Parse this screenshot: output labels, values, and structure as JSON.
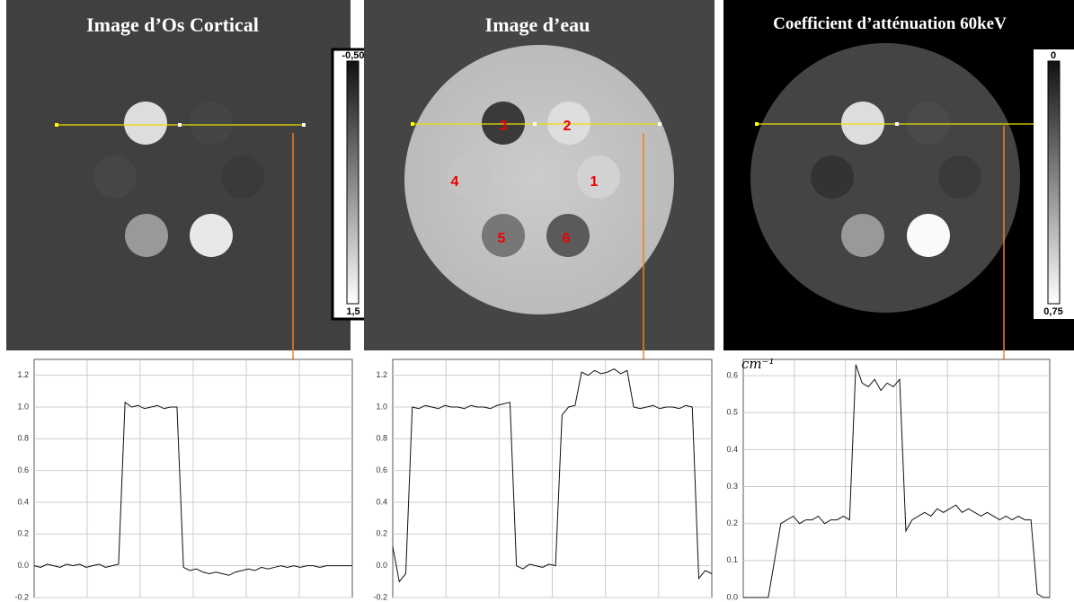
{
  "images": [
    {
      "title": "Image d’Os Cortical",
      "colorbar": {
        "top": "-0,50",
        "bottom": "1,5"
      }
    },
    {
      "title": "Image d’eau",
      "inserts": [
        "1",
        "2",
        "3",
        "4",
        "5",
        "6"
      ]
    },
    {
      "title": "Coefficient d’atténuation  60keV",
      "colorbar": {
        "top": "0",
        "bottom": "0,75"
      }
    }
  ],
  "chart_data": [
    {
      "type": "line",
      "color": "#111111",
      "ylim": [
        -0.2,
        1.3
      ],
      "yticks": [
        -0.2,
        {
          "value": 0,
          "label": "0.0"
        },
        0.2,
        0.4,
        0.6,
        0.8,
        {
          "value": 1,
          "label": "1.0"
        },
        1.2
      ],
      "grid": true,
      "values": [
        0.0,
        -0.01,
        0.01,
        0,
        -0.01,
        0.01,
        0,
        0.01,
        -0.01,
        0,
        0.01,
        -0.01,
        0.0,
        0.01,
        1.03,
        1.0,
        1.01,
        0.99,
        1.0,
        1.01,
        0.99,
        1.0,
        1.0,
        -0.01,
        -0.03,
        -0.02,
        -0.04,
        -0.05,
        -0.04,
        -0.05,
        -0.06,
        -0.04,
        -0.03,
        -0.02,
        -0.03,
        -0.01,
        -0.02,
        -0.01,
        0,
        -0.01,
        0,
        -0.01,
        0,
        0,
        -0.01,
        0,
        0,
        0,
        0,
        0
      ]
    },
    {
      "type": "line",
      "color": "#111111",
      "ylim": [
        -0.2,
        1.3
      ],
      "yticks": [
        -0.2,
        {
          "value": 0,
          "label": "0.0"
        },
        0.2,
        0.4,
        0.6,
        0.8,
        {
          "value": 1,
          "label": "1.0"
        },
        1.2
      ],
      "grid": true,
      "values": [
        0.12,
        -0.1,
        -0.05,
        1.0,
        0.99,
        1.01,
        1.0,
        0.99,
        1.01,
        1.0,
        1.0,
        0.99,
        1.01,
        1.0,
        1.0,
        0.99,
        1.01,
        1.02,
        1.03,
        0.0,
        -0.02,
        0.01,
        0,
        -0.01,
        0.01,
        0,
        0.95,
        1.0,
        1.01,
        1.22,
        1.2,
        1.23,
        1.21,
        1.22,
        1.24,
        1.21,
        1.23,
        1.0,
        0.99,
        1.0,
        1.01,
        0.99,
        1.0,
        1.0,
        0.99,
        1.01,
        1.0,
        -0.08,
        -0.03,
        -0.05
      ]
    },
    {
      "type": "line",
      "color": "#111111",
      "ylim": [
        0,
        0.644
      ],
      "ylabel": "cm⁻¹",
      "yticks": [
        {
          "value": 0,
          "label": "0.0"
        },
        0.1,
        0.2,
        0.3,
        0.4,
        0.5,
        0.6
      ],
      "grid": true,
      "values": [
        0.0,
        0.0,
        0.0,
        0.0,
        0.0,
        0.1,
        0.2,
        0.21,
        0.22,
        0.2,
        0.21,
        0.21,
        0.22,
        0.2,
        0.21,
        0.21,
        0.22,
        0.21,
        0.63,
        0.58,
        0.57,
        0.59,
        0.56,
        0.58,
        0.57,
        0.59,
        0.18,
        0.21,
        0.22,
        0.23,
        0.22,
        0.24,
        0.23,
        0.24,
        0.25,
        0.23,
        0.24,
        0.23,
        0.22,
        0.23,
        0.22,
        0.21,
        0.22,
        0.21,
        0.22,
        0.21,
        0.21,
        0.01,
        0.0,
        0.0
      ]
    }
  ]
}
